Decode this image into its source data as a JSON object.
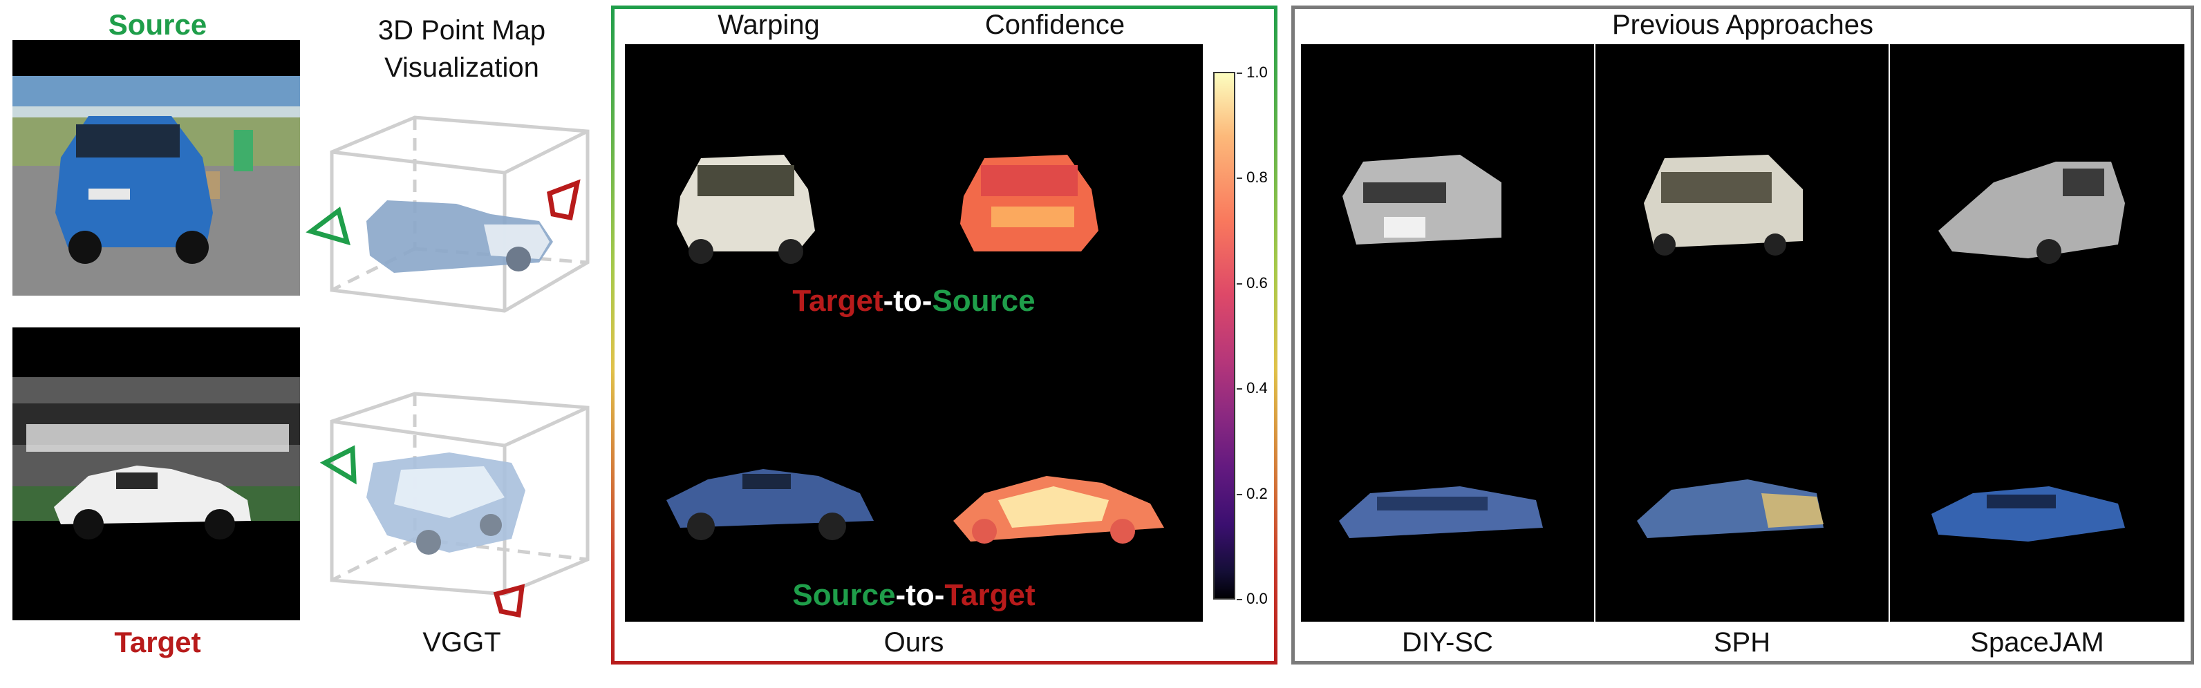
{
  "source_label": "Source",
  "target_label": "Target",
  "pointmap_title_line1": "3D Point Map",
  "pointmap_title_line2": "Visualization",
  "vggt_label": "VGGT",
  "warping_label": "Warping",
  "confidence_label": "Confidence",
  "t2s": {
    "part1": "Target",
    "part2": "-to-",
    "part3": "Source"
  },
  "s2t": {
    "part1": "Source",
    "part2": "-to-",
    "part3": "Target"
  },
  "ours_label": "Ours",
  "colorbar_ticks": [
    "1.0",
    "0.8",
    "0.6",
    "0.4",
    "0.2",
    "0.0"
  ],
  "previous_title": "Previous Approaches",
  "methods": [
    "DIY-SC",
    "SPH",
    "SpaceJAM"
  ],
  "colors": {
    "green": "#1f9e4a",
    "red": "#b81b1b",
    "gray_border": "#7a7a7a"
  }
}
